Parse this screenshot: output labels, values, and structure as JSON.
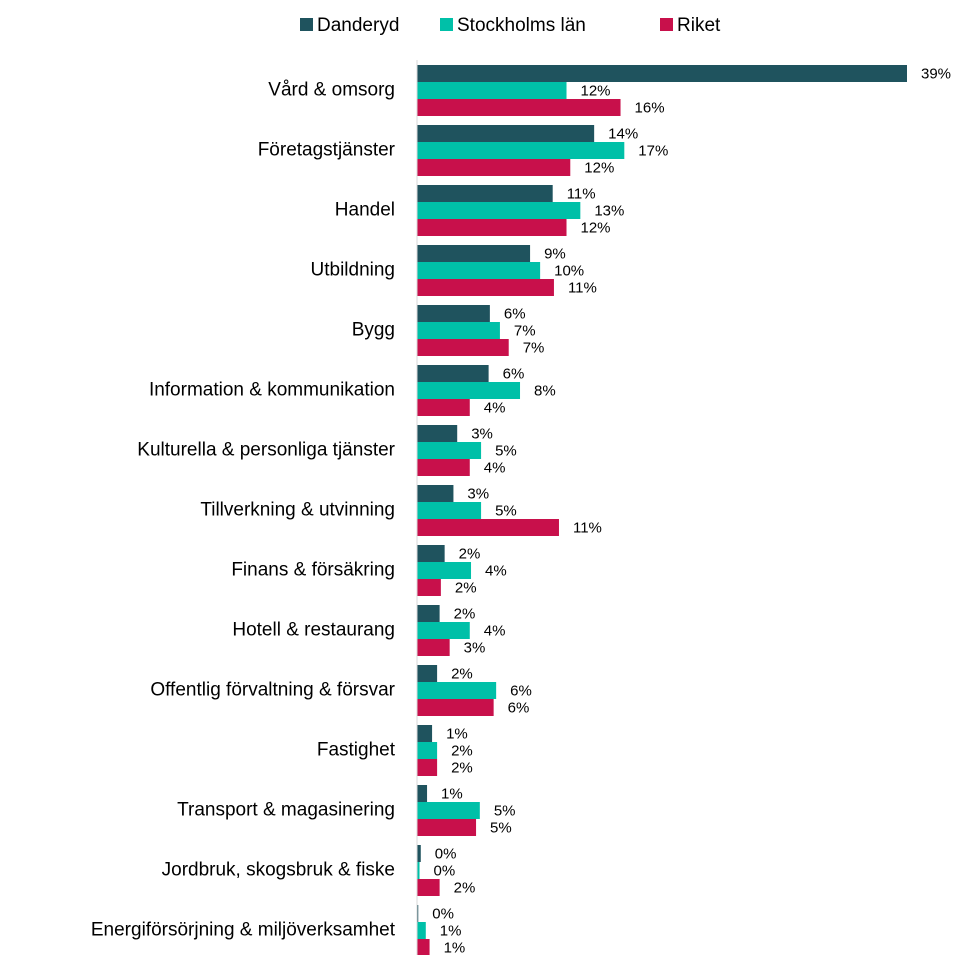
{
  "chart_data": {
    "type": "barh",
    "categories": [
      "Vård & omsorg",
      "Företagstjänster",
      "Handel",
      "Utbildning ",
      "Bygg",
      "Information & kommunikation",
      "Kulturella & personliga tjänster",
      "Tillverkning & utvinning",
      "Finans & försäkring",
      "Hotell & restaurang",
      "Offentlig förvaltning & försvar",
      "Fastighet",
      "Transport & magasinering",
      "Jordbruk, skogsbruk & fiske",
      "Energiförsörjning & miljöverksamhet"
    ],
    "series": [
      {
        "name": "Danderyd",
        "color": "#1f535e",
        "values": [
          39.0,
          14.1,
          10.8,
          9.0,
          5.8,
          5.7,
          3.2,
          2.9,
          2.2,
          1.8,
          1.6,
          1.2,
          0.8,
          0.3,
          0.1
        ],
        "value_labels": [
          "39%",
          "14%",
          "11%",
          "9%",
          "6%",
          "6%",
          "3%",
          "3%",
          "2%",
          "2%",
          "2%",
          "1%",
          "1%",
          "0%",
          "0%"
        ]
      },
      {
        "name": "Stockholms län",
        "color": "#00c0a8",
        "values": [
          11.9,
          16.5,
          13.0,
          9.8,
          6.6,
          8.2,
          5.1,
          5.1,
          4.3,
          4.2,
          6.3,
          1.6,
          5.0,
          0.2,
          0.7
        ],
        "value_labels": [
          "12%",
          "17%",
          "13%",
          "10%",
          "7%",
          "8%",
          "5%",
          "5%",
          "4%",
          "4%",
          "6%",
          "2%",
          "5%",
          "0%",
          "1%"
        ]
      },
      {
        "name": "Riket",
        "color": "#c8104b",
        "values": [
          16.2,
          12.2,
          11.9,
          10.9,
          7.3,
          4.2,
          4.2,
          11.3,
          1.9,
          2.6,
          6.1,
          1.6,
          4.7,
          1.8,
          1.0
        ],
        "value_labels": [
          "16%",
          "12%",
          "12%",
          "11%",
          "7%",
          "4%",
          "4%",
          "11%",
          "2%",
          "3%",
          "6%",
          "2%",
          "5%",
          "2%",
          "1%"
        ]
      }
    ],
    "xlim": [
      0,
      40
    ],
    "legend": "top"
  }
}
